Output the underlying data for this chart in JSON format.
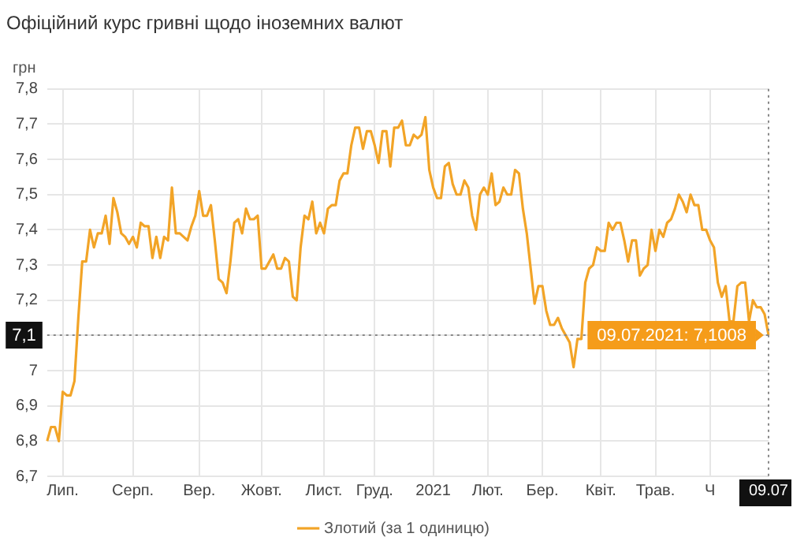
{
  "chart_data": {
    "type": "line",
    "title": "Офіційний курс гривні щодо іноземних валют",
    "ylabel": "грн",
    "categories": [
      null,
      null,
      null,
      null,
      "Лип.",
      null,
      null,
      null,
      null,
      null,
      null,
      null,
      null,
      null,
      null,
      null,
      null,
      null,
      null,
      null,
      null,
      null,
      "Серп.",
      null,
      null,
      null,
      null,
      null,
      null,
      null,
      null,
      null,
      null,
      null,
      null,
      null,
      null,
      null,
      null,
      "Вер.",
      null,
      null,
      null,
      null,
      null,
      null,
      null,
      null,
      null,
      null,
      null,
      null,
      null,
      null,
      null,
      "Жовт.",
      null,
      null,
      null,
      null,
      null,
      null,
      null,
      null,
      null,
      null,
      null,
      null,
      null,
      null,
      null,
      "Лист.",
      null,
      null,
      null,
      null,
      null,
      null,
      null,
      null,
      null,
      null,
      null,
      null,
      "Груд.",
      null,
      null,
      null,
      null,
      null,
      null,
      null,
      null,
      null,
      null,
      null,
      null,
      null,
      null,
      "2021",
      null,
      null,
      null,
      null,
      null,
      null,
      null,
      null,
      null,
      null,
      null,
      null,
      null,
      "Лют.",
      null,
      null,
      null,
      null,
      null,
      null,
      null,
      null,
      null,
      null,
      null,
      null,
      null,
      "Бер.",
      null,
      null,
      null,
      null,
      null,
      null,
      null,
      null,
      null,
      null,
      null,
      null,
      null,
      null,
      "Квіт.",
      null,
      null,
      null,
      null,
      null,
      null,
      null,
      null,
      null,
      null,
      null,
      null,
      null,
      "Трав.",
      null,
      null,
      null,
      null,
      null,
      null,
      null,
      null,
      null,
      null,
      null,
      null,
      null,
      "Ч",
      null,
      null,
      null,
      null,
      null,
      null,
      null,
      null,
      null,
      null,
      null,
      null,
      null,
      null,
      "09.07"
    ],
    "series": [
      {
        "name": "Злотий (за 1 одиницю)",
        "color": "#f2a427",
        "values": [
          6.8,
          6.84,
          6.84,
          6.8,
          6.94,
          6.93,
          6.93,
          6.97,
          7.15,
          7.31,
          7.31,
          7.4,
          7.35,
          7.39,
          7.39,
          7.44,
          7.36,
          7.49,
          7.45,
          7.39,
          7.38,
          7.36,
          7.38,
          7.35,
          7.42,
          7.41,
          7.41,
          7.32,
          7.38,
          7.32,
          7.38,
          7.37,
          7.52,
          7.39,
          7.39,
          7.38,
          7.37,
          7.41,
          7.44,
          7.51,
          7.44,
          7.44,
          7.47,
          7.37,
          7.26,
          7.25,
          7.22,
          7.31,
          7.42,
          7.43,
          7.39,
          7.46,
          7.43,
          7.43,
          7.44,
          7.29,
          7.29,
          7.31,
          7.33,
          7.29,
          7.29,
          7.32,
          7.31,
          7.21,
          7.2,
          7.35,
          7.44,
          7.43,
          7.48,
          7.39,
          7.42,
          7.39,
          7.46,
          7.47,
          7.47,
          7.54,
          7.56,
          7.56,
          7.64,
          7.69,
          7.69,
          7.63,
          7.68,
          7.68,
          7.64,
          7.59,
          7.68,
          7.68,
          7.58,
          7.69,
          7.69,
          7.71,
          7.64,
          7.64,
          7.67,
          7.66,
          7.67,
          7.72,
          7.57,
          7.52,
          7.49,
          7.49,
          7.58,
          7.59,
          7.53,
          7.5,
          7.5,
          7.54,
          7.52,
          7.44,
          7.4,
          7.5,
          7.52,
          7.5,
          7.56,
          7.47,
          7.48,
          7.52,
          7.5,
          7.5,
          7.57,
          7.56,
          7.46,
          7.39,
          7.29,
          7.19,
          7.24,
          7.24,
          7.17,
          7.13,
          7.13,
          7.15,
          7.12,
          7.1,
          7.08,
          7.01,
          7.09,
          7.09,
          7.25,
          7.29,
          7.3,
          7.35,
          7.34,
          7.34,
          7.42,
          7.4,
          7.42,
          7.42,
          7.37,
          7.31,
          7.37,
          7.37,
          7.27,
          7.29,
          7.3,
          7.4,
          7.34,
          7.4,
          7.38,
          7.42,
          7.43,
          7.46,
          7.5,
          7.48,
          7.45,
          7.5,
          7.47,
          7.47,
          7.4,
          7.4,
          7.37,
          7.35,
          7.25,
          7.21,
          7.24,
          7.14,
          7.14,
          7.24,
          7.25,
          7.25,
          7.14,
          7.2,
          7.18,
          7.18,
          7.16,
          7.1008
        ]
      }
    ],
    "ylim": [
      6.7,
      7.8
    ],
    "yticks": [
      {
        "value": 6.7,
        "label": "6,7"
      },
      {
        "value": 6.8,
        "label": "6,8"
      },
      {
        "value": 6.9,
        "label": "6,9"
      },
      7,
      {
        "value": 7.1,
        "label": null
      },
      {
        "value": 7.2,
        "label": "7,2"
      },
      {
        "value": 7.3,
        "label": "7,3"
      },
      {
        "value": 7.4,
        "label": "7,4"
      },
      {
        "value": 7.5,
        "label": "7,5"
      },
      {
        "value": 7.6,
        "label": "7,6"
      },
      {
        "value": 7.7,
        "label": "7,7"
      },
      {
        "value": 7.8,
        "label": "7,8"
      }
    ],
    "ref_lines": [
      {
        "axis": "y",
        "value": 7.1008,
        "label": "7,1",
        "line_style": "dotted"
      },
      {
        "axis": "x",
        "value": "09.07",
        "line_style": "dotted"
      }
    ],
    "annotations": [
      {
        "text": "09.07.2021: 7,1008",
        "x": "09.07",
        "y": 7.1008
      }
    ],
    "grid": true,
    "legend": "bottom",
    "marker": "none",
    "line_style": "solid"
  }
}
